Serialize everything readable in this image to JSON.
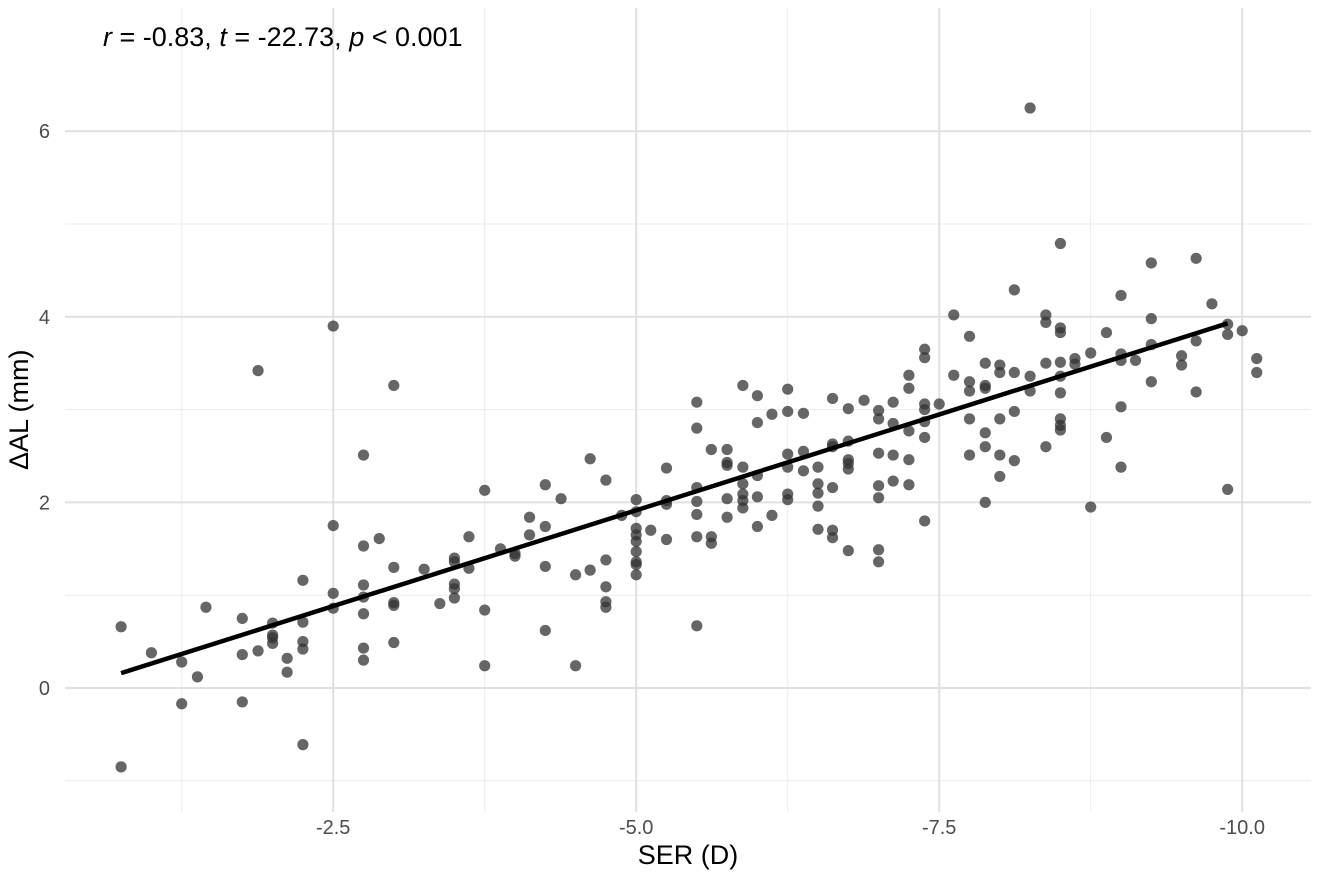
{
  "chart_data": {
    "type": "scatter",
    "annotation": {
      "r_sym": "r",
      "r_val": " = -0.83, ",
      "t_sym": "t",
      "t_val": " = -22.73, ",
      "p_sym": "p",
      "p_val": " < 0.001"
    },
    "xlabel": "SER (D)",
    "ylabel": "ΔAL (mm)",
    "x_reversed": true,
    "xlim": [
      -0.25,
      -10.5
    ],
    "ylim": [
      -1.0,
      7.0
    ],
    "x_ticks": [
      -2.5,
      -5.0,
      -7.5,
      -10.0
    ],
    "x_tick_labels": [
      "-2.5",
      "-5.0",
      "-7.5",
      "-10.0"
    ],
    "y_ticks": [
      0,
      2,
      4,
      6
    ],
    "y_tick_labels": [
      "0",
      "2",
      "4",
      "6"
    ],
    "grid": true,
    "point_color": "#333333",
    "line_color": "#000000",
    "fit_line": {
      "x": [
        -0.75,
        -9.88
      ],
      "y": [
        0.16,
        3.93
      ]
    },
    "points": [
      [
        -0.75,
        0.66
      ],
      [
        -0.75,
        -0.85
      ],
      [
        -1.0,
        0.38
      ],
      [
        -1.25,
        0.28
      ],
      [
        -1.25,
        -0.17
      ],
      [
        -1.38,
        0.12
      ],
      [
        -1.45,
        0.87
      ],
      [
        -1.75,
        0.75
      ],
      [
        -1.75,
        0.36
      ],
      [
        -1.75,
        -0.15
      ],
      [
        -1.88,
        0.4
      ],
      [
        -1.88,
        3.42
      ],
      [
        -2.0,
        0.7
      ],
      [
        -2.0,
        0.57
      ],
      [
        -2.0,
        0.54
      ],
      [
        -2.0,
        0.48
      ],
      [
        -2.12,
        0.32
      ],
      [
        -2.12,
        0.17
      ],
      [
        -2.25,
        1.16
      ],
      [
        -2.25,
        0.71
      ],
      [
        -2.25,
        0.5
      ],
      [
        -2.25,
        0.42
      ],
      [
        -2.25,
        -0.61
      ],
      [
        -2.5,
        3.9
      ],
      [
        -2.5,
        1.75
      ],
      [
        -2.5,
        1.02
      ],
      [
        -2.5,
        0.86
      ],
      [
        -2.75,
        2.51
      ],
      [
        -2.75,
        1.53
      ],
      [
        -2.75,
        1.11
      ],
      [
        -2.75,
        0.98
      ],
      [
        -2.75,
        0.8
      ],
      [
        -2.75,
        0.43
      ],
      [
        -2.75,
        0.3
      ],
      [
        -2.88,
        1.61
      ],
      [
        -3.0,
        3.26
      ],
      [
        -3.0,
        1.3
      ],
      [
        -3.0,
        0.92
      ],
      [
        -3.0,
        0.89
      ],
      [
        -3.0,
        0.49
      ],
      [
        -3.25,
        1.28
      ],
      [
        -3.38,
        0.91
      ],
      [
        -3.5,
        1.4
      ],
      [
        -3.5,
        1.36
      ],
      [
        -3.5,
        1.12
      ],
      [
        -3.5,
        1.07
      ],
      [
        -3.5,
        0.97
      ],
      [
        -3.62,
        1.63
      ],
      [
        -3.62,
        1.29
      ],
      [
        -3.75,
        2.13
      ],
      [
        -3.75,
        0.84
      ],
      [
        -3.75,
        0.24
      ],
      [
        -3.88,
        1.5
      ],
      [
        -4.0,
        1.45
      ],
      [
        -4.0,
        1.42
      ],
      [
        -4.12,
        1.84
      ],
      [
        -4.12,
        1.65
      ],
      [
        -4.25,
        2.19
      ],
      [
        -4.25,
        1.74
      ],
      [
        -4.25,
        1.31
      ],
      [
        -4.25,
        0.62
      ],
      [
        -4.38,
        2.04
      ],
      [
        -4.5,
        1.22
      ],
      [
        -4.5,
        0.24
      ],
      [
        -4.62,
        2.47
      ],
      [
        -4.62,
        1.27
      ],
      [
        -4.75,
        2.24
      ],
      [
        -4.75,
        1.38
      ],
      [
        -4.75,
        1.09
      ],
      [
        -4.75,
        0.93
      ],
      [
        -4.75,
        0.87
      ],
      [
        -4.88,
        1.86
      ],
      [
        -5.0,
        2.03
      ],
      [
        -5.0,
        1.9
      ],
      [
        -5.0,
        1.72
      ],
      [
        -5.0,
        1.65
      ],
      [
        -5.0,
        1.58
      ],
      [
        -5.0,
        1.47
      ],
      [
        -5.0,
        1.36
      ],
      [
        -5.0,
        1.33
      ],
      [
        -5.0,
        1.22
      ],
      [
        -5.12,
        1.7
      ],
      [
        -5.25,
        2.37
      ],
      [
        -5.25,
        2.02
      ],
      [
        -5.25,
        1.98
      ],
      [
        -5.25,
        1.6
      ],
      [
        -5.5,
        3.08
      ],
      [
        -5.5,
        2.8
      ],
      [
        -5.5,
        2.16
      ],
      [
        -5.5,
        2.01
      ],
      [
        -5.5,
        1.87
      ],
      [
        -5.5,
        1.63
      ],
      [
        -5.5,
        0.67
      ],
      [
        -5.62,
        2.57
      ],
      [
        -5.62,
        1.63
      ],
      [
        -5.62,
        1.56
      ],
      [
        -5.75,
        2.57
      ],
      [
        -5.75,
        2.43
      ],
      [
        -5.75,
        2.4
      ],
      [
        -5.75,
        2.04
      ],
      [
        -5.75,
        1.84
      ],
      [
        -5.88,
        3.26
      ],
      [
        -5.88,
        2.38
      ],
      [
        -5.88,
        2.2
      ],
      [
        -5.88,
        2.09
      ],
      [
        -5.88,
        2.02
      ],
      [
        -5.88,
        1.94
      ],
      [
        -6.0,
        3.15
      ],
      [
        -6.0,
        2.86
      ],
      [
        -6.0,
        2.29
      ],
      [
        -6.0,
        2.06
      ],
      [
        -6.0,
        1.74
      ],
      [
        -6.12,
        2.95
      ],
      [
        -6.12,
        1.86
      ],
      [
        -6.25,
        3.22
      ],
      [
        -6.25,
        2.98
      ],
      [
        -6.25,
        2.52
      ],
      [
        -6.25,
        2.38
      ],
      [
        -6.25,
        2.09
      ],
      [
        -6.25,
        2.03
      ],
      [
        -6.38,
        2.96
      ],
      [
        -6.38,
        2.55
      ],
      [
        -6.38,
        2.34
      ],
      [
        -6.5,
        2.38
      ],
      [
        -6.5,
        2.2
      ],
      [
        -6.5,
        2.1
      ],
      [
        -6.5,
        1.96
      ],
      [
        -6.5,
        1.71
      ],
      [
        -6.62,
        3.12
      ],
      [
        -6.62,
        2.63
      ],
      [
        -6.62,
        2.6
      ],
      [
        -6.62,
        2.16
      ],
      [
        -6.62,
        1.7
      ],
      [
        -6.62,
        1.62
      ],
      [
        -6.75,
        3.01
      ],
      [
        -6.75,
        2.66
      ],
      [
        -6.75,
        2.46
      ],
      [
        -6.75,
        2.42
      ],
      [
        -6.75,
        2.36
      ],
      [
        -6.75,
        1.48
      ],
      [
        -6.88,
        3.1
      ],
      [
        -7.0,
        2.99
      ],
      [
        -7.0,
        2.9
      ],
      [
        -7.0,
        2.53
      ],
      [
        -7.0,
        2.18
      ],
      [
        -7.0,
        2.05
      ],
      [
        -7.0,
        1.49
      ],
      [
        -7.0,
        1.36
      ],
      [
        -7.12,
        3.08
      ],
      [
        -7.12,
        2.85
      ],
      [
        -7.12,
        2.51
      ],
      [
        -7.12,
        2.23
      ],
      [
        -7.25,
        3.37
      ],
      [
        -7.25,
        3.23
      ],
      [
        -7.25,
        2.77
      ],
      [
        -7.25,
        2.46
      ],
      [
        -7.25,
        2.19
      ],
      [
        -7.38,
        3.65
      ],
      [
        -7.38,
        3.56
      ],
      [
        -7.38,
        3.06
      ],
      [
        -7.38,
        3.0
      ],
      [
        -7.38,
        2.87
      ],
      [
        -7.38,
        2.7
      ],
      [
        -7.38,
        1.8
      ],
      [
        -7.5,
        3.06
      ],
      [
        -7.62,
        4.02
      ],
      [
        -7.62,
        3.37
      ],
      [
        -7.75,
        3.79
      ],
      [
        -7.75,
        3.3
      ],
      [
        -7.75,
        3.2
      ],
      [
        -7.75,
        2.9
      ],
      [
        -7.75,
        2.51
      ],
      [
        -7.88,
        3.5
      ],
      [
        -7.88,
        3.26
      ],
      [
        -7.88,
        3.23
      ],
      [
        -7.88,
        2.75
      ],
      [
        -7.88,
        2.6
      ],
      [
        -7.88,
        2.0
      ],
      [
        -8.0,
        3.48
      ],
      [
        -8.0,
        3.4
      ],
      [
        -8.0,
        2.9
      ],
      [
        -8.0,
        2.51
      ],
      [
        -8.0,
        2.28
      ],
      [
        -8.12,
        4.29
      ],
      [
        -8.12,
        3.4
      ],
      [
        -8.12,
        2.98
      ],
      [
        -8.12,
        2.45
      ],
      [
        -8.25,
        6.25
      ],
      [
        -8.25,
        3.36
      ],
      [
        -8.25,
        3.2
      ],
      [
        -8.38,
        4.02
      ],
      [
        -8.38,
        3.94
      ],
      [
        -8.38,
        3.5
      ],
      [
        -8.38,
        2.6
      ],
      [
        -8.5,
        4.79
      ],
      [
        -8.5,
        3.88
      ],
      [
        -8.5,
        3.83
      ],
      [
        -8.5,
        3.51
      ],
      [
        -8.5,
        3.36
      ],
      [
        -8.5,
        3.18
      ],
      [
        -8.5,
        2.9
      ],
      [
        -8.5,
        2.83
      ],
      [
        -8.5,
        2.78
      ],
      [
        -8.62,
        3.55
      ],
      [
        -8.62,
        3.49
      ],
      [
        -8.75,
        3.61
      ],
      [
        -8.75,
        1.95
      ],
      [
        -8.88,
        3.83
      ],
      [
        -8.88,
        2.7
      ],
      [
        -9.0,
        4.23
      ],
      [
        -9.0,
        3.6
      ],
      [
        -9.0,
        3.53
      ],
      [
        -9.0,
        3.03
      ],
      [
        -9.0,
        2.38
      ],
      [
        -9.12,
        3.53
      ],
      [
        -9.25,
        4.58
      ],
      [
        -9.25,
        3.98
      ],
      [
        -9.25,
        3.7
      ],
      [
        -9.25,
        3.3
      ],
      [
        -9.5,
        3.58
      ],
      [
        -9.5,
        3.48
      ],
      [
        -9.62,
        4.63
      ],
      [
        -9.62,
        3.74
      ],
      [
        -9.62,
        3.19
      ],
      [
        -9.75,
        4.14
      ],
      [
        -9.88,
        3.92
      ],
      [
        -9.88,
        3.81
      ],
      [
        -9.88,
        2.14
      ],
      [
        -10.0,
        3.85
      ],
      [
        -10.12,
        3.55
      ],
      [
        -10.12,
        3.4
      ]
    ]
  }
}
